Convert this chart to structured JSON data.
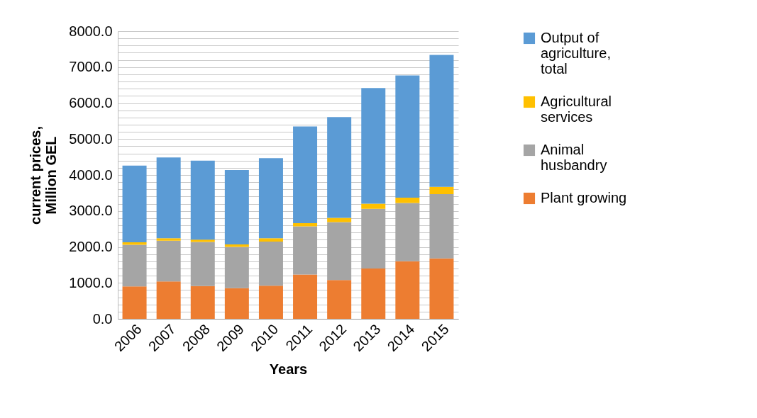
{
  "chart_data": {
    "type": "bar",
    "stacked": true,
    "xlabel": "Years",
    "ylabel": "current prices, Million GEL",
    "categories": [
      "2006",
      "2007",
      "2008",
      "2009",
      "2010",
      "2011",
      "2012",
      "2013",
      "2014",
      "2015"
    ],
    "series": [
      {
        "name": "Plant growing",
        "color": "#ed7d31",
        "values": [
          900,
          1040,
          910,
          850,
          920,
          1230,
          1080,
          1400,
          1600,
          1680
        ]
      },
      {
        "name": "Animal husbandry",
        "color": "#a5a5a5",
        "values": [
          1160,
          1130,
          1230,
          1150,
          1230,
          1340,
          1610,
          1660,
          1620,
          1790
        ]
      },
      {
        "name": "Agricultural services",
        "color": "#ffc000",
        "values": [
          70,
          70,
          60,
          70,
          90,
          90,
          120,
          140,
          150,
          200
        ]
      },
      {
        "name": "Output of agriculture, total",
        "color": "#5b9bd5",
        "values": [
          2130,
          2250,
          2200,
          2070,
          2230,
          2690,
          2800,
          3220,
          3400,
          3670
        ]
      }
    ],
    "ylim": [
      0,
      8000
    ],
    "yticks": [
      {
        "value": 0,
        "label": "0.0"
      },
      {
        "value": 200,
        "label": null
      },
      {
        "value": 400,
        "label": null
      },
      {
        "value": 600,
        "label": null
      },
      {
        "value": 800,
        "label": null
      },
      {
        "value": 1000,
        "label": "1000.0"
      },
      {
        "value": 1200,
        "label": null
      },
      {
        "value": 1400,
        "label": null
      },
      {
        "value": 1600,
        "label": null
      },
      {
        "value": 1800,
        "label": null
      },
      {
        "value": 2000,
        "label": "2000.0"
      },
      {
        "value": 2200,
        "label": null
      },
      {
        "value": 2400,
        "label": null
      },
      {
        "value": 2600,
        "label": null
      },
      {
        "value": 2800,
        "label": null
      },
      {
        "value": 3000,
        "label": "3000.0"
      },
      {
        "value": 3200,
        "label": null
      },
      {
        "value": 3400,
        "label": null
      },
      {
        "value": 3600,
        "label": null
      },
      {
        "value": 3800,
        "label": null
      },
      {
        "value": 4000,
        "label": "4000.0"
      },
      {
        "value": 4200,
        "label": null
      },
      {
        "value": 4400,
        "label": null
      },
      {
        "value": 4600,
        "label": null
      },
      {
        "value": 4800,
        "label": null
      },
      {
        "value": 5000,
        "label": "5000.0"
      },
      {
        "value": 5200,
        "label": null
      },
      {
        "value": 5400,
        "label": null
      },
      {
        "value": 5600,
        "label": null
      },
      {
        "value": 5800,
        "label": null
      },
      {
        "value": 6000,
        "label": "6000.0"
      },
      {
        "value": 6200,
        "label": null
      },
      {
        "value": 6400,
        "label": null
      },
      {
        "value": 6600,
        "label": null
      },
      {
        "value": 6800,
        "label": null
      },
      {
        "value": 7000,
        "label": "7000.0"
      },
      {
        "value": 7200,
        "label": null
      },
      {
        "value": 7400,
        "label": null
      },
      {
        "value": 7600,
        "label": null
      },
      {
        "value": 7800,
        "label": null
      },
      {
        "value": 8000,
        "label": "8000.0"
      }
    ],
    "grid": true,
    "legend": "right"
  }
}
